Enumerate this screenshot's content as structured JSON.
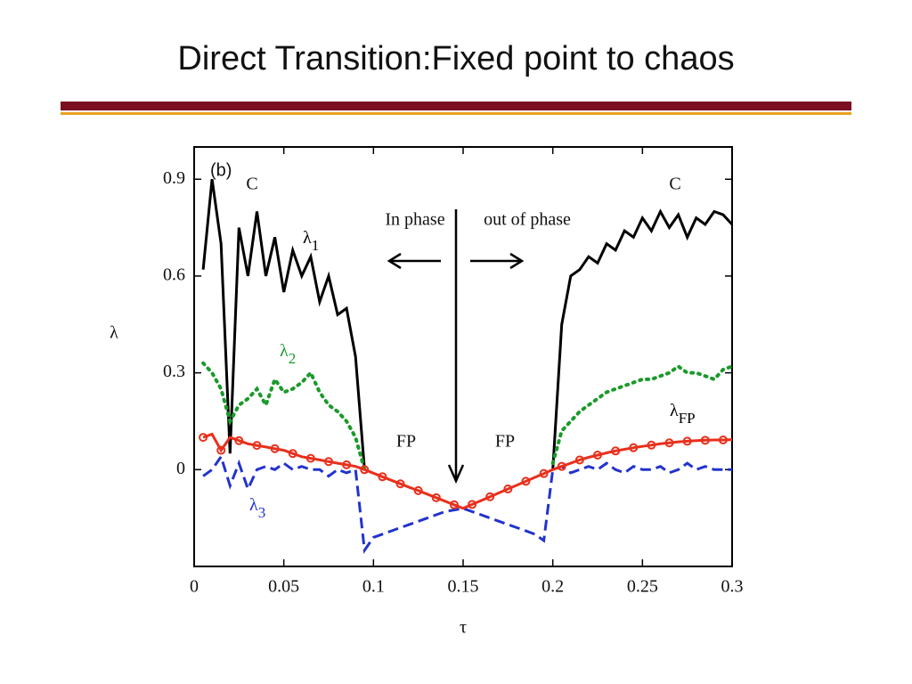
{
  "slide": {
    "title": "Direct Transition:Fixed point to chaos"
  },
  "chart_data": {
    "type": "line",
    "x_label": "τ",
    "y_label": "λ",
    "xlim": [
      0,
      0.3
    ],
    "xticks": [
      0,
      0.05,
      0.1,
      0.15,
      0.2,
      0.25,
      0.3
    ],
    "ylim": [
      -0.3,
      1.0
    ],
    "yticks": [
      0,
      0.3,
      0.6,
      0.9
    ],
    "annotations": [
      "(b)",
      "C",
      "C",
      "In phase",
      "out of phase",
      "FP",
      "FP"
    ],
    "x": [
      0.005,
      0.01,
      0.015,
      0.02,
      0.025,
      0.03,
      0.035,
      0.04,
      0.045,
      0.05,
      0.055,
      0.06,
      0.065,
      0.07,
      0.075,
      0.08,
      0.085,
      0.09,
      0.095,
      0.1,
      0.105,
      0.11,
      0.115,
      0.12,
      0.125,
      0.13,
      0.135,
      0.14,
      0.145,
      0.15,
      0.155,
      0.16,
      0.165,
      0.17,
      0.175,
      0.18,
      0.185,
      0.19,
      0.195,
      0.2,
      0.205,
      0.21,
      0.215,
      0.22,
      0.225,
      0.23,
      0.235,
      0.24,
      0.245,
      0.25,
      0.255,
      0.26,
      0.265,
      0.27,
      0.275,
      0.28,
      0.285,
      0.29,
      0.295,
      0.3
    ],
    "series": [
      {
        "name": "λ1",
        "color": "#000000",
        "dash": "solid",
        "values": [
          0.62,
          0.9,
          0.7,
          0.05,
          0.75,
          0.6,
          0.8,
          0.6,
          0.72,
          0.55,
          0.68,
          0.6,
          0.66,
          0.52,
          0.6,
          0.48,
          0.5,
          0.35,
          0.0,
          null,
          null,
          null,
          null,
          null,
          null,
          null,
          null,
          null,
          null,
          null,
          null,
          null,
          null,
          null,
          null,
          null,
          null,
          null,
          null,
          0.0,
          0.45,
          0.6,
          0.62,
          0.66,
          0.64,
          0.7,
          0.68,
          0.74,
          0.72,
          0.78,
          0.74,
          0.8,
          0.75,
          0.79,
          0.72,
          0.78,
          0.76,
          0.8,
          0.79,
          0.76
        ]
      },
      {
        "name": "λ2",
        "color": "#1a9a2a",
        "dash": "dotted",
        "values": [
          0.33,
          0.3,
          0.25,
          0.15,
          0.2,
          0.22,
          0.25,
          0.2,
          0.28,
          0.24,
          0.25,
          0.27,
          0.3,
          0.24,
          0.2,
          0.18,
          0.15,
          0.1,
          0.0,
          null,
          null,
          null,
          null,
          null,
          null,
          null,
          null,
          null,
          null,
          null,
          null,
          null,
          null,
          null,
          null,
          null,
          null,
          null,
          null,
          0.02,
          0.12,
          0.15,
          0.18,
          0.2,
          0.22,
          0.24,
          0.25,
          0.26,
          0.27,
          0.28,
          0.28,
          0.29,
          0.3,
          0.32,
          0.3,
          0.3,
          0.29,
          0.28,
          0.31,
          0.32
        ]
      },
      {
        "name": "λ3",
        "color": "#2233cc",
        "dash": "dashed",
        "values": [
          -0.02,
          0.0,
          0.04,
          -0.05,
          0.02,
          -0.06,
          0.0,
          0.01,
          0.0,
          0.02,
          0.0,
          0.01,
          0.0,
          0.0,
          -0.02,
          0.0,
          -0.01,
          0.0,
          -0.25,
          -0.21,
          -0.2,
          -0.19,
          -0.18,
          -0.17,
          -0.16,
          -0.15,
          -0.14,
          -0.13,
          -0.125,
          -0.12,
          -0.13,
          -0.14,
          -0.15,
          -0.16,
          -0.17,
          -0.18,
          -0.19,
          -0.2,
          -0.22,
          0.0,
          0.01,
          -0.01,
          0.0,
          0.01,
          0.0,
          0.02,
          0.0,
          -0.01,
          0.01,
          0.0,
          0.0,
          0.01,
          -0.01,
          0.0,
          0.02,
          0.0,
          0.01,
          0.0,
          0.0,
          0.0
        ]
      },
      {
        "name": "λFP",
        "color": "#e8301c",
        "dash": "solid",
        "marker": "circle",
        "values": [
          0.1,
          0.11,
          0.06,
          0.1,
          0.09,
          0.08,
          0.075,
          0.07,
          0.065,
          0.06,
          0.05,
          0.04,
          0.035,
          0.03,
          0.025,
          0.02,
          0.015,
          0.01,
          0.0,
          -0.011,
          -0.022,
          -0.033,
          -0.044,
          -0.055,
          -0.065,
          -0.076,
          -0.087,
          -0.098,
          -0.109,
          -0.12,
          -0.108,
          -0.096,
          -0.084,
          -0.072,
          -0.06,
          -0.048,
          -0.036,
          -0.024,
          -0.012,
          0.0,
          0.01,
          0.02,
          0.03,
          0.038,
          0.045,
          0.052,
          0.058,
          0.063,
          0.068,
          0.072,
          0.076,
          0.08,
          0.083,
          0.086,
          0.088,
          0.09,
          0.091,
          0.092,
          0.092,
          0.093
        ]
      }
    ]
  }
}
